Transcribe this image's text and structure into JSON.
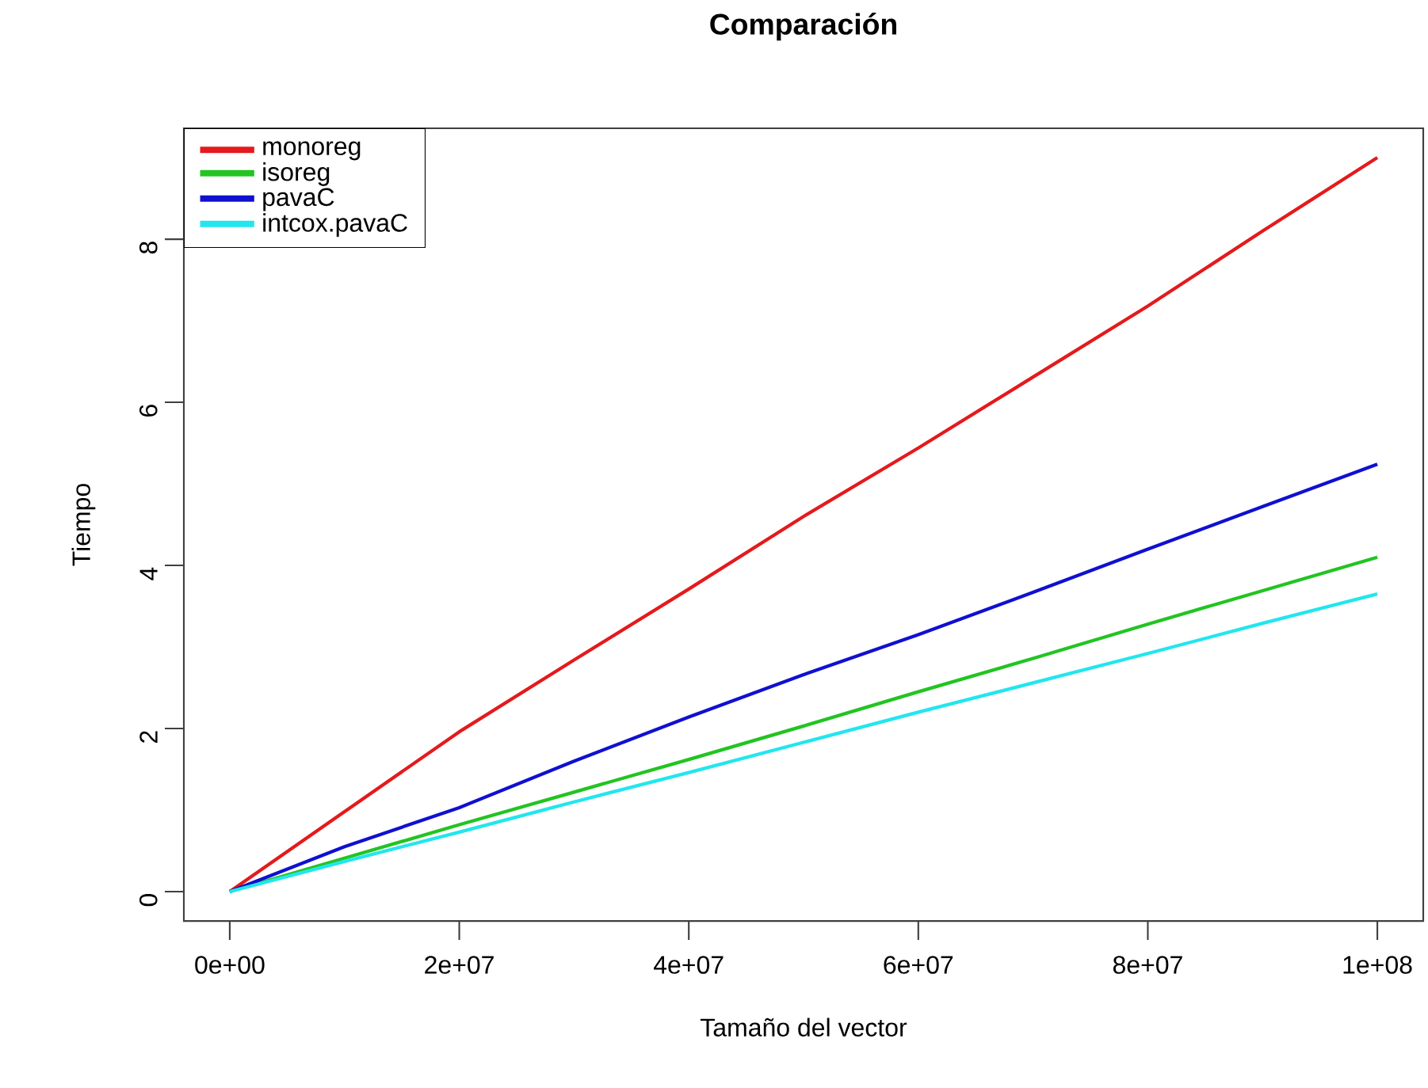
{
  "chart_data": {
    "type": "line",
    "title": "Comparación",
    "xlabel": "Tamaño del vector",
    "ylabel": "Tiempo",
    "x": [
      0,
      10000000,
      20000000,
      30000000,
      40000000,
      50000000,
      60000000,
      70000000,
      80000000,
      90000000,
      100000000
    ],
    "series": [
      {
        "name": "monoreg",
        "color": "#e41a1c",
        "values": [
          0,
          0.98,
          1.96,
          2.84,
          3.71,
          4.6,
          5.44,
          6.31,
          7.18,
          8.1,
          9.0
        ]
      },
      {
        "name": "isoreg",
        "color": "#22c422",
        "values": [
          0,
          0.41,
          0.82,
          1.22,
          1.62,
          2.03,
          2.45,
          2.86,
          3.28,
          3.69,
          4.1
        ]
      },
      {
        "name": "pavaC",
        "color": "#1010d0",
        "values": [
          0,
          0.55,
          1.03,
          1.6,
          2.14,
          2.66,
          3.15,
          3.67,
          4.2,
          4.72,
          5.24
        ]
      },
      {
        "name": "intcox.pavaC",
        "color": "#22e6ee",
        "values": [
          0,
          0.37,
          0.73,
          1.1,
          1.46,
          1.83,
          2.2,
          2.56,
          2.92,
          3.29,
          3.65
        ]
      }
    ],
    "xlim": [
      -4000000,
      104000000
    ],
    "ylim": [
      -0.36,
      9.36
    ],
    "xticks": [
      {
        "value": 0,
        "label": "0e+00"
      },
      {
        "value": 20000000,
        "label": "2e+07"
      },
      {
        "value": 40000000,
        "label": "4e+07"
      },
      {
        "value": 60000000,
        "label": "6e+07"
      },
      {
        "value": 80000000,
        "label": "8e+07"
      },
      {
        "value": 100000000,
        "label": "1e+08"
      }
    ],
    "yticks": [
      0,
      2,
      4,
      6,
      8
    ],
    "legend": "top left"
  }
}
